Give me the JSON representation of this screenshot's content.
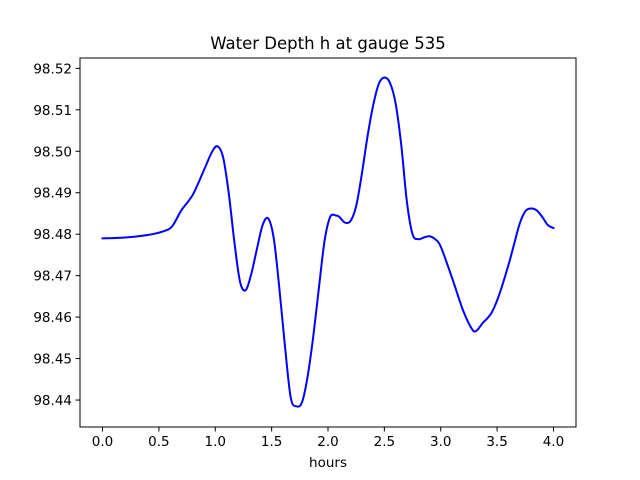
{
  "chart_data": {
    "type": "line",
    "title": "Water Depth h at gauge 535",
    "xlabel": "hours",
    "ylabel": "",
    "xlim": [
      -0.2,
      4.2
    ],
    "ylim": [
      98.4335,
      98.5225
    ],
    "grid": false,
    "x_ticks": [
      0.0,
      0.5,
      1.0,
      1.5,
      2.0,
      2.5,
      3.0,
      3.5,
      4.0
    ],
    "x_tick_labels": [
      "0.0",
      "0.5",
      "1.0",
      "1.5",
      "2.0",
      "2.5",
      "3.0",
      "3.5",
      "4.0"
    ],
    "y_ticks": [
      98.44,
      98.45,
      98.46,
      98.47,
      98.48,
      98.49,
      98.5,
      98.51,
      98.52
    ],
    "y_tick_labels": [
      "98.44",
      "98.45",
      "98.46",
      "98.47",
      "98.48",
      "98.49",
      "98.50",
      "98.51",
      "98.52"
    ],
    "series": [
      {
        "color": "#0000ff",
        "x": [
          0.0,
          0.2,
          0.4,
          0.55,
          0.62,
          0.7,
          0.8,
          0.9,
          0.97,
          1.02,
          1.07,
          1.12,
          1.17,
          1.22,
          1.27,
          1.32,
          1.37,
          1.42,
          1.47,
          1.52,
          1.57,
          1.62,
          1.67,
          1.72,
          1.77,
          1.82,
          1.87,
          1.92,
          1.97,
          2.02,
          2.07,
          2.1,
          2.15,
          2.2,
          2.25,
          2.3,
          2.35,
          2.4,
          2.45,
          2.5,
          2.55,
          2.6,
          2.65,
          2.7,
          2.75,
          2.8,
          2.85,
          2.9,
          2.95,
          3.0,
          3.1,
          3.2,
          3.28,
          3.32,
          3.37,
          3.45,
          3.52,
          3.6,
          3.65,
          3.7,
          3.75,
          3.8,
          3.85,
          3.9,
          3.95,
          4.0
        ],
        "y": [
          98.479,
          98.4792,
          98.4798,
          98.4808,
          98.482,
          98.4858,
          98.4895,
          98.4955,
          98.4998,
          98.5012,
          98.4985,
          98.4898,
          98.478,
          98.4685,
          98.4665,
          98.4705,
          98.4765,
          98.4822,
          98.4838,
          98.4788,
          98.4665,
          98.4525,
          98.4405,
          98.4385,
          98.4395,
          98.4458,
          98.4555,
          98.4672,
          98.4785,
          98.4842,
          98.4845,
          98.4842,
          98.4828,
          98.4832,
          98.4868,
          98.4945,
          98.5035,
          98.511,
          98.5162,
          98.5178,
          98.5165,
          98.5115,
          98.5015,
          98.4878,
          98.48,
          98.4788,
          98.4792,
          98.4795,
          98.4788,
          98.477,
          98.4695,
          98.4615,
          98.457,
          98.4568,
          98.4585,
          98.461,
          98.4655,
          98.4725,
          98.4775,
          98.4825,
          98.4855,
          98.4862,
          98.4858,
          98.4842,
          98.4822,
          98.4815
        ]
      }
    ]
  }
}
